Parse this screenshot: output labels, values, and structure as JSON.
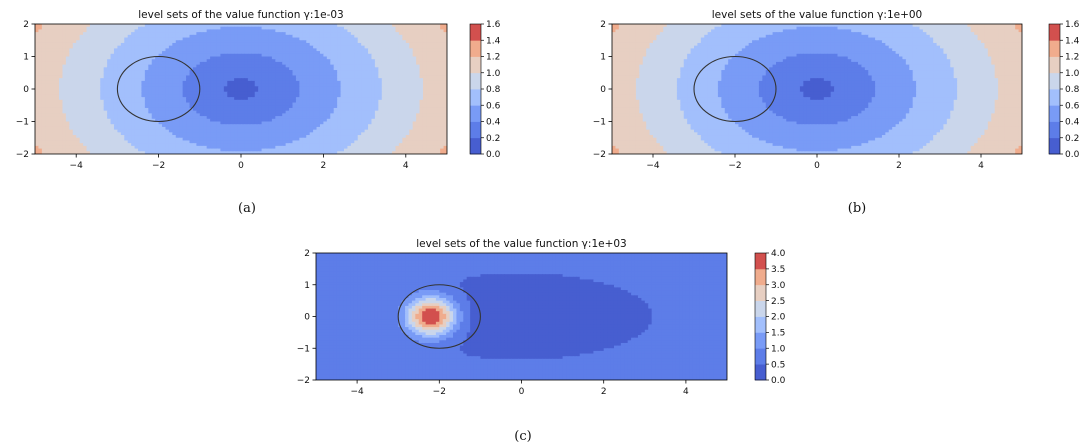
{
  "chart_data": [
    {
      "type": "heatmap",
      "subtype": "filled-contour",
      "title": "level sets of the value function γ:1e-03",
      "caption": "(a)",
      "xlim": [
        -5,
        5
      ],
      "ylim": [
        -2,
        2
      ],
      "xticks": [
        "−4",
        "−2",
        "0",
        "2",
        "4"
      ],
      "xtick_values": [
        -4,
        -2,
        0,
        2,
        4
      ],
      "yticks": [
        "2",
        "1",
        "0",
        "−1",
        "−2"
      ],
      "ytick_values": [
        2,
        1,
        0,
        -1,
        -2
      ],
      "obstacle": {
        "center": [
          -2,
          0
        ],
        "radius": 1
      },
      "colorbar": {
        "range": [
          0,
          1.6
        ],
        "ticks": [
          "0.0",
          "0.2",
          "0.4",
          "0.6",
          "0.8",
          "1.0",
          "1.2",
          "1.4",
          "1.6"
        ],
        "tick_values": [
          0,
          0.2,
          0.4,
          0.6,
          0.8,
          1.0,
          1.2,
          1.4,
          1.6
        ]
      },
      "grid": false,
      "model": {
        "shape": "ring",
        "ax": 0.2,
        "ay": 0.25
      }
    },
    {
      "type": "heatmap",
      "subtype": "filled-contour",
      "title": "level sets of the value function γ:1e+00",
      "caption": "(b)",
      "xlim": [
        -5,
        5
      ],
      "ylim": [
        -2,
        2
      ],
      "xticks": [
        "−4",
        "−2",
        "0",
        "2",
        "4"
      ],
      "xtick_values": [
        -4,
        -2,
        0,
        2,
        4
      ],
      "yticks": [
        "2",
        "1",
        "0",
        "−1",
        "−2"
      ],
      "ytick_values": [
        2,
        1,
        0,
        -1,
        -2
      ],
      "obstacle": {
        "center": [
          -2,
          0
        ],
        "radius": 1
      },
      "colorbar": {
        "range": [
          0,
          1.6
        ],
        "ticks": [
          "0.0",
          "0.2",
          "0.4",
          "0.6",
          "0.8",
          "1.0",
          "1.2",
          "1.4",
          "1.6"
        ],
        "tick_values": [
          0,
          0.2,
          0.4,
          0.6,
          0.8,
          1.0,
          1.2,
          1.4,
          1.6
        ]
      },
      "grid": false,
      "model": {
        "shape": "ring",
        "ax": 0.2,
        "ay": 0.25
      }
    },
    {
      "type": "heatmap",
      "subtype": "filled-contour",
      "title": "level sets of the value function γ:1e+03",
      "caption": "(c)",
      "xlim": [
        -5,
        5
      ],
      "ylim": [
        -2,
        2
      ],
      "xticks": [
        "−4",
        "−2",
        "0",
        "2",
        "4"
      ],
      "xtick_values": [
        -4,
        -2,
        0,
        2,
        4
      ],
      "yticks": [
        "2",
        "1",
        "0",
        "−1",
        "−2"
      ],
      "ytick_values": [
        2,
        1,
        0,
        -1,
        -2
      ],
      "obstacle": {
        "center": [
          -2,
          0
        ],
        "radius": 1
      },
      "colorbar": {
        "range": [
          0,
          4.0
        ],
        "ticks": [
          "0.0",
          "0.5",
          "1.0",
          "1.5",
          "2.0",
          "2.5",
          "3.0",
          "3.5",
          "4.0"
        ],
        "tick_values": [
          0,
          0.5,
          1.0,
          1.5,
          2.0,
          2.5,
          3.0,
          3.5,
          4.0
        ]
      },
      "grid": false,
      "model": {
        "shape": "peak",
        "ax": 0.12,
        "ay": 0.28,
        "peak": {
          "center": [
            -2.2,
            0
          ],
          "height": 3.7,
          "sigma": 0.42
        }
      }
    }
  ]
}
